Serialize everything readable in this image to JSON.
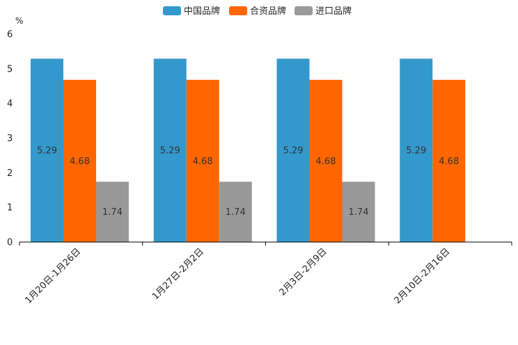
{
  "chart_data": {
    "type": "bar",
    "unit": "%",
    "ylim": [
      0,
      6
    ],
    "yticks": [
      0,
      1,
      2,
      3,
      4,
      5,
      6
    ],
    "categories": [
      "1月20日-1月26日",
      "1月27日-2月2日",
      "2月3日-2月9日",
      "2月10日-2月16日"
    ],
    "series": [
      {
        "name": "中国品牌",
        "color": "#3399cc",
        "values": [
          5.29,
          5.29,
          5.29,
          5.29
        ]
      },
      {
        "name": "合资品牌",
        "color": "#ff6600",
        "values": [
          4.68,
          4.68,
          4.68,
          4.68
        ]
      },
      {
        "name": "进口品牌",
        "color": "#999999",
        "values": [
          1.74,
          1.74,
          1.74,
          null
        ]
      }
    ],
    "legend_position": "top-center",
    "grid": false
  }
}
